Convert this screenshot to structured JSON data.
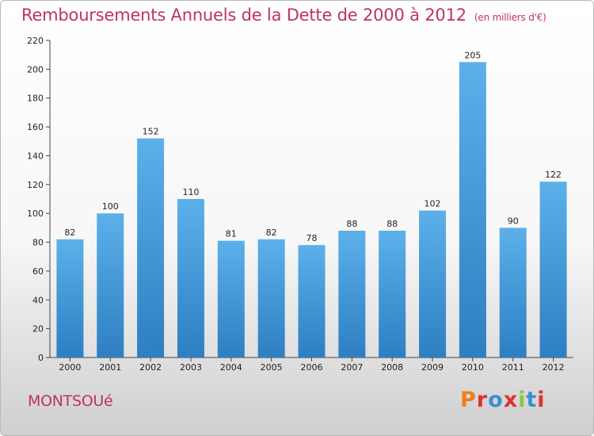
{
  "title": "Remboursements Annuels de la Dette de 2000 à 2012",
  "subtitle": "(en milliers d'€)",
  "commune": "MONTSOUé",
  "logo": "Proxiti",
  "colors": {
    "bar": "#3a8fd0",
    "bar_light": "#5cb0ea",
    "title": "#c0306a"
  },
  "chart_data": {
    "type": "bar",
    "title": "Remboursements Annuels de la Dette de 2000 à 2012",
    "subtitle": "(en milliers d'€)",
    "categories": [
      "2000",
      "2001",
      "2002",
      "2003",
      "2004",
      "2005",
      "2006",
      "2007",
      "2008",
      "2009",
      "2010",
      "2011",
      "2012"
    ],
    "values": [
      82,
      100,
      152,
      110,
      81,
      82,
      78,
      88,
      88,
      102,
      205,
      90,
      122
    ],
    "ylim": [
      0,
      220
    ],
    "yticks": [
      0,
      20,
      40,
      60,
      80,
      100,
      120,
      140,
      160,
      180,
      200,
      220
    ],
    "grid": false
  }
}
